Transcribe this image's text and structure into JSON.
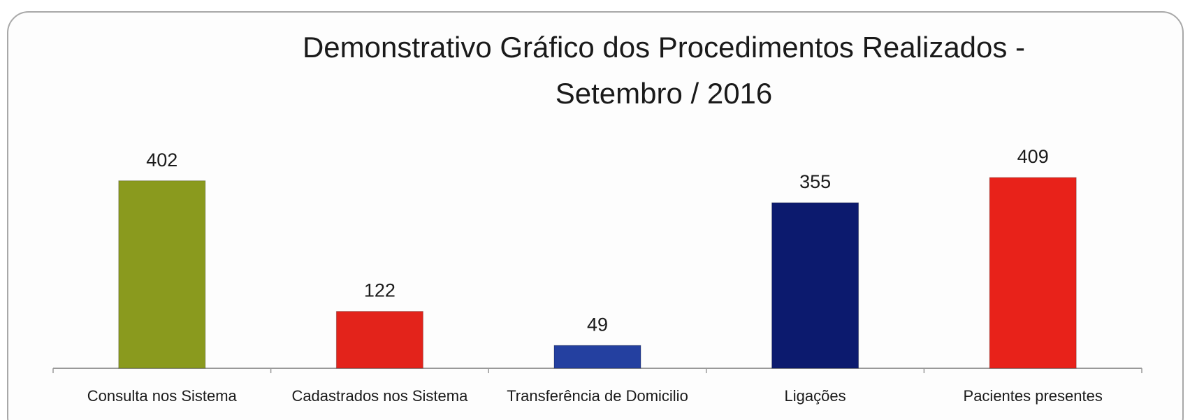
{
  "chart_data": {
    "type": "bar",
    "title_lines": [
      "Demonstrativo Gráfico dos Procedimentos Realizados -",
      "Setembro / 2016"
    ],
    "categories": [
      "Consulta nos Sistema",
      "Cadastrados nos Sistema",
      "Transferência de Domicilio",
      "Ligações",
      "Pacientes presentes"
    ],
    "values": [
      402,
      122,
      49,
      355,
      409
    ],
    "colors": [
      "#8a9a1e",
      "#e3231b",
      "#2440a0",
      "#0c1a6e",
      "#e8221a"
    ]
  }
}
